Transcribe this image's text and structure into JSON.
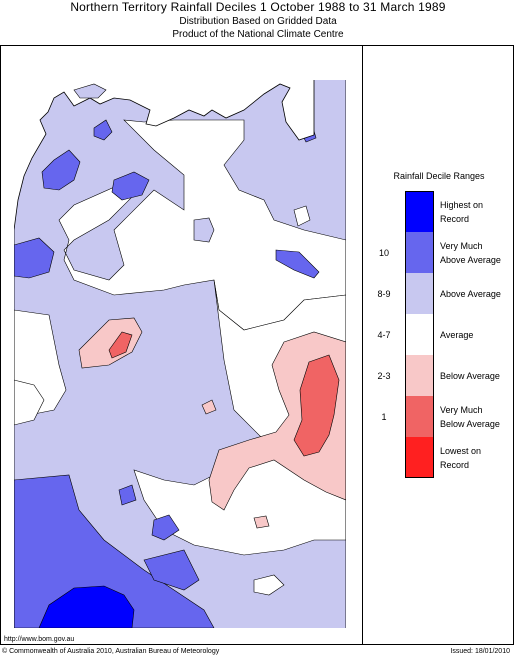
{
  "header": {
    "title": "Northern Territory Rainfall Deciles     1 October 1988 to 31 March 1989",
    "subtitle_line1": "Distribution Based on Gridded Data",
    "subtitle_line2": "Product of the National Climate Centre"
  },
  "legend": {
    "title": "Rainfall Decile Ranges",
    "items": [
      {
        "code": "",
        "label_line1": "Highest on",
        "label_line2": "Record",
        "color": "#0000ff"
      },
      {
        "code": "10",
        "label_line1": "Very Much",
        "label_line2": "Above Average",
        "color": "#6666ee"
      },
      {
        "code": "8-9",
        "label_line1": "Above Average",
        "label_line2": "",
        "color": "#c8c8f0"
      },
      {
        "code": "4-7",
        "label_line1": "Average",
        "label_line2": "",
        "color": "#ffffff"
      },
      {
        "code": "2-3",
        "label_line1": "Below Average",
        "label_line2": "",
        "color": "#f8c8c8"
      },
      {
        "code": "1",
        "label_line1": "Very Much",
        "label_line2": "Below Average",
        "color": "#f06464"
      },
      {
        "code": "",
        "label_line1": "Lowest on",
        "label_line2": "Record",
        "color": "#ff2020"
      }
    ]
  },
  "footer": {
    "url": "http://www.bom.gov.au",
    "copyright": "© Commonwealth of Australia 2010, Australian Bureau of Meteorology",
    "issued": "Issued: 18/01/2010"
  }
}
